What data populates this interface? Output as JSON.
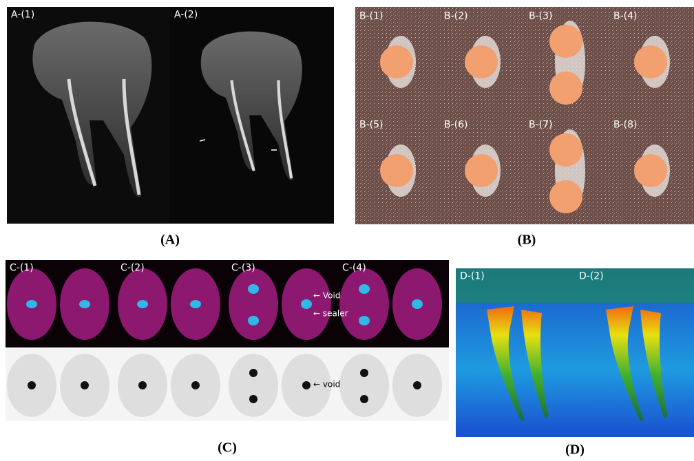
{
  "panels": [
    {
      "caption": "(A)",
      "labels": [
        "A-(1)",
        "A-(2)"
      ]
    },
    {
      "caption": "(B)",
      "labels": [
        "B-(1)",
        "B-(2)",
        "B-(3)",
        "B-(4)",
        "B-(5)",
        "B-(6)",
        "B-(7)",
        "B-(8)"
      ]
    },
    {
      "caption": "(C)",
      "labels": [
        "C-(1)",
        "C-(2)",
        "C-(3)",
        "C-(4)"
      ],
      "annotations": [
        "← Void",
        "← sealer",
        "← void"
      ]
    },
    {
      "caption": "(D)",
      "labels": [
        "D-(1)",
        "D-(2)"
      ]
    }
  ]
}
